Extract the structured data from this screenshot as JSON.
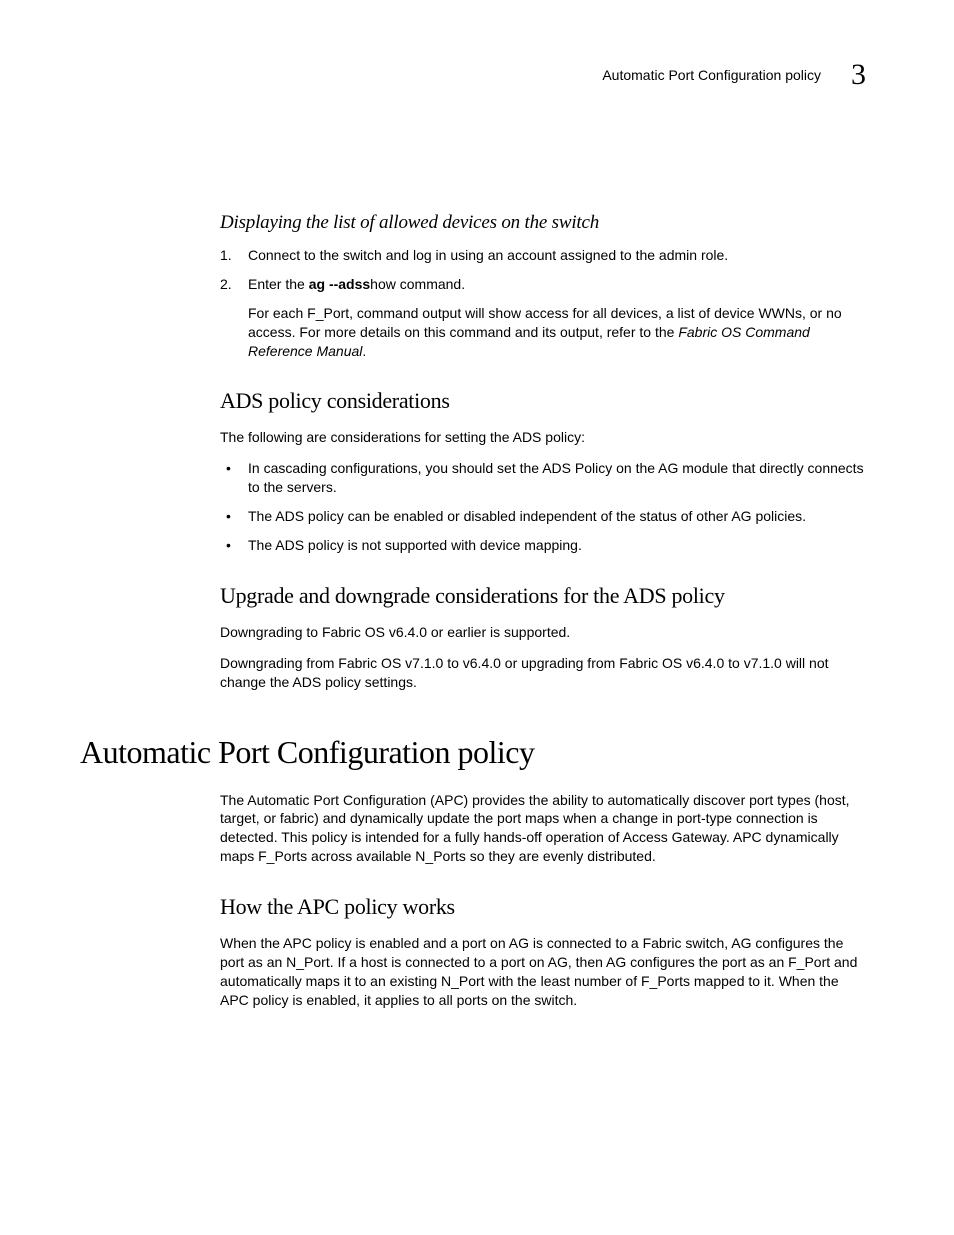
{
  "header": {
    "running_title": "Automatic Port Configuration policy",
    "chapter_number": "3"
  },
  "sec_displaying": {
    "title": "Displaying the list of allowed devices on the switch",
    "step1": "Connect to the switch and log in using an account assigned to the admin role.",
    "step2_prefix": "Enter the ",
    "step2_cmd_a": "ag ",
    "step2_cmd_b": "‑‑adss",
    "step2_cmd_c": "how",
    "step2_suffix": " command.",
    "step2_extra_a": "For each F_Port, command output will show access for all devices, a list of device WWNs, or no access. For more details on this command and its output, refer to the ",
    "step2_extra_ref": "Fabric OS Command Reference Manual",
    "step2_extra_b": "."
  },
  "sec_ads_considerations": {
    "title": "ADS policy considerations",
    "intro": "The following are considerations for setting the ADS policy:",
    "b1": "In cascading configurations, you should set the ADS Policy on the AG module that directly connects to the servers.",
    "b2": "The ADS policy can be enabled or disabled independent of the status of other AG policies.",
    "b3": "The ADS policy is not supported with device mapping."
  },
  "sec_upgrade": {
    "title": "Upgrade and downgrade considerations for the ADS policy",
    "p1": "Downgrading to Fabric OS v6.4.0 or earlier is supported.",
    "p2": "Downgrading from Fabric OS v7.1.0 to v6.4.0 or upgrading from Fabric OS v6.4.0 to v7.1.0 will not change the ADS policy settings."
  },
  "sec_apc": {
    "title": "Automatic Port Configuration policy",
    "p1": "The Automatic Port Configuration (APC) provides the ability to automatically discover port types (host, target, or fabric) and dynamically update the port maps when a change in port-type connection is detected. This policy is intended for a fully hands-off operation of Access Gateway. APC dynamically maps F_Ports across available N_Ports so they are evenly distributed."
  },
  "sec_how": {
    "title": "How the APC policy works",
    "p1": "When the APC policy is enabled and a port on AG is connected to a Fabric switch, AG configures the port as an N_Port. If a host is connected to a port on AG, then AG configures the port as an F_Port and automatically maps it to an existing N_Port with the least number of F_Ports mapped to it. When the APC policy is enabled, it applies to all ports on the switch."
  }
}
